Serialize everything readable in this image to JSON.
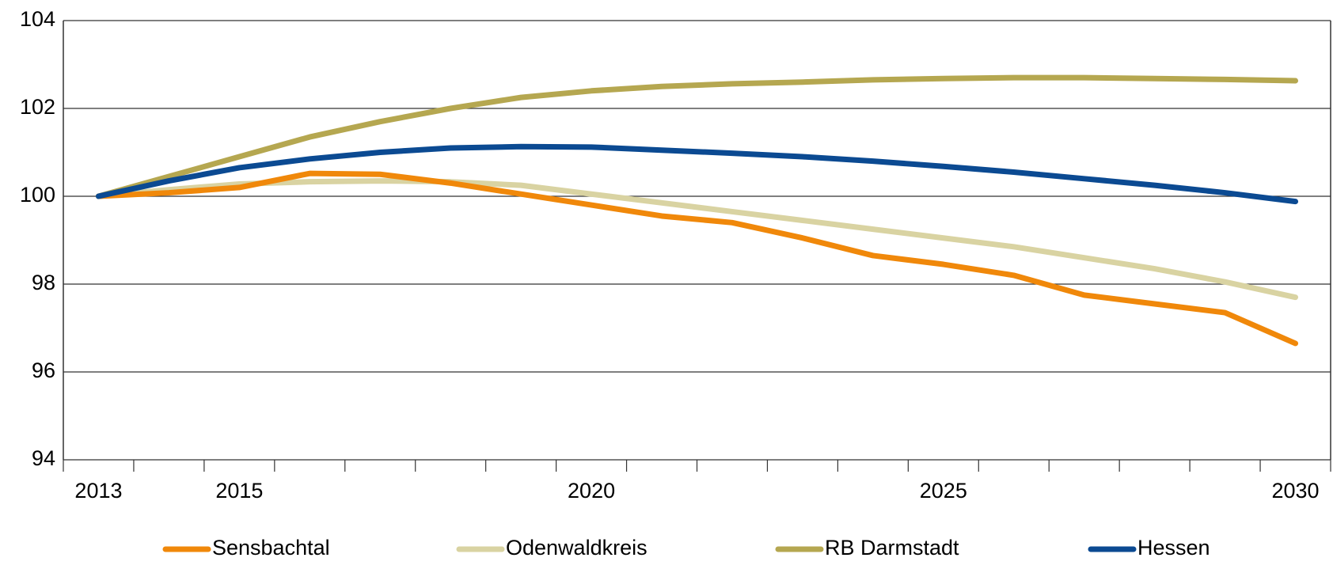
{
  "chart_data": {
    "type": "line",
    "categories": [
      "2013",
      null,
      "2015",
      null,
      null,
      null,
      null,
      "2020",
      null,
      null,
      null,
      null,
      "2025",
      null,
      null,
      null,
      null,
      "2030"
    ],
    "series": [
      {
        "name": "Sensbachtal",
        "color": "#f0880a",
        "values": [
          100,
          100.08,
          100.2,
          100.52,
          100.5,
          100.3,
          100.05,
          99.8,
          99.55,
          99.4,
          99.05,
          98.65,
          98.45,
          98.2,
          97.75,
          97.55,
          97.35,
          96.65
        ]
      },
      {
        "name": "Odenwaldkreis",
        "color": "#d9d3a2",
        "values": [
          100,
          100.15,
          100.28,
          100.33,
          100.35,
          100.33,
          100.25,
          100.05,
          99.85,
          99.65,
          99.45,
          99.25,
          99.05,
          98.85,
          98.6,
          98.35,
          98.05,
          97.7
        ]
      },
      {
        "name": "RB Darmstadt",
        "color": "#b5a750",
        "values": [
          100,
          100.45,
          100.9,
          101.35,
          101.7,
          102.0,
          102.25,
          102.4,
          102.5,
          102.56,
          102.6,
          102.65,
          102.68,
          102.7,
          102.7,
          102.68,
          102.66,
          102.63
        ]
      },
      {
        "name": "Hessen",
        "color": "#0b4a92",
        "values": [
          100,
          100.35,
          100.65,
          100.85,
          101.0,
          101.1,
          101.13,
          101.12,
          101.05,
          100.98,
          100.9,
          100.8,
          100.68,
          100.55,
          100.4,
          100.25,
          100.08,
          99.88
        ]
      }
    ],
    "ylim": [
      94,
      104
    ],
    "yticks": [
      94,
      96,
      98,
      100,
      102,
      104
    ],
    "grid": true,
    "legend": "bottom"
  }
}
